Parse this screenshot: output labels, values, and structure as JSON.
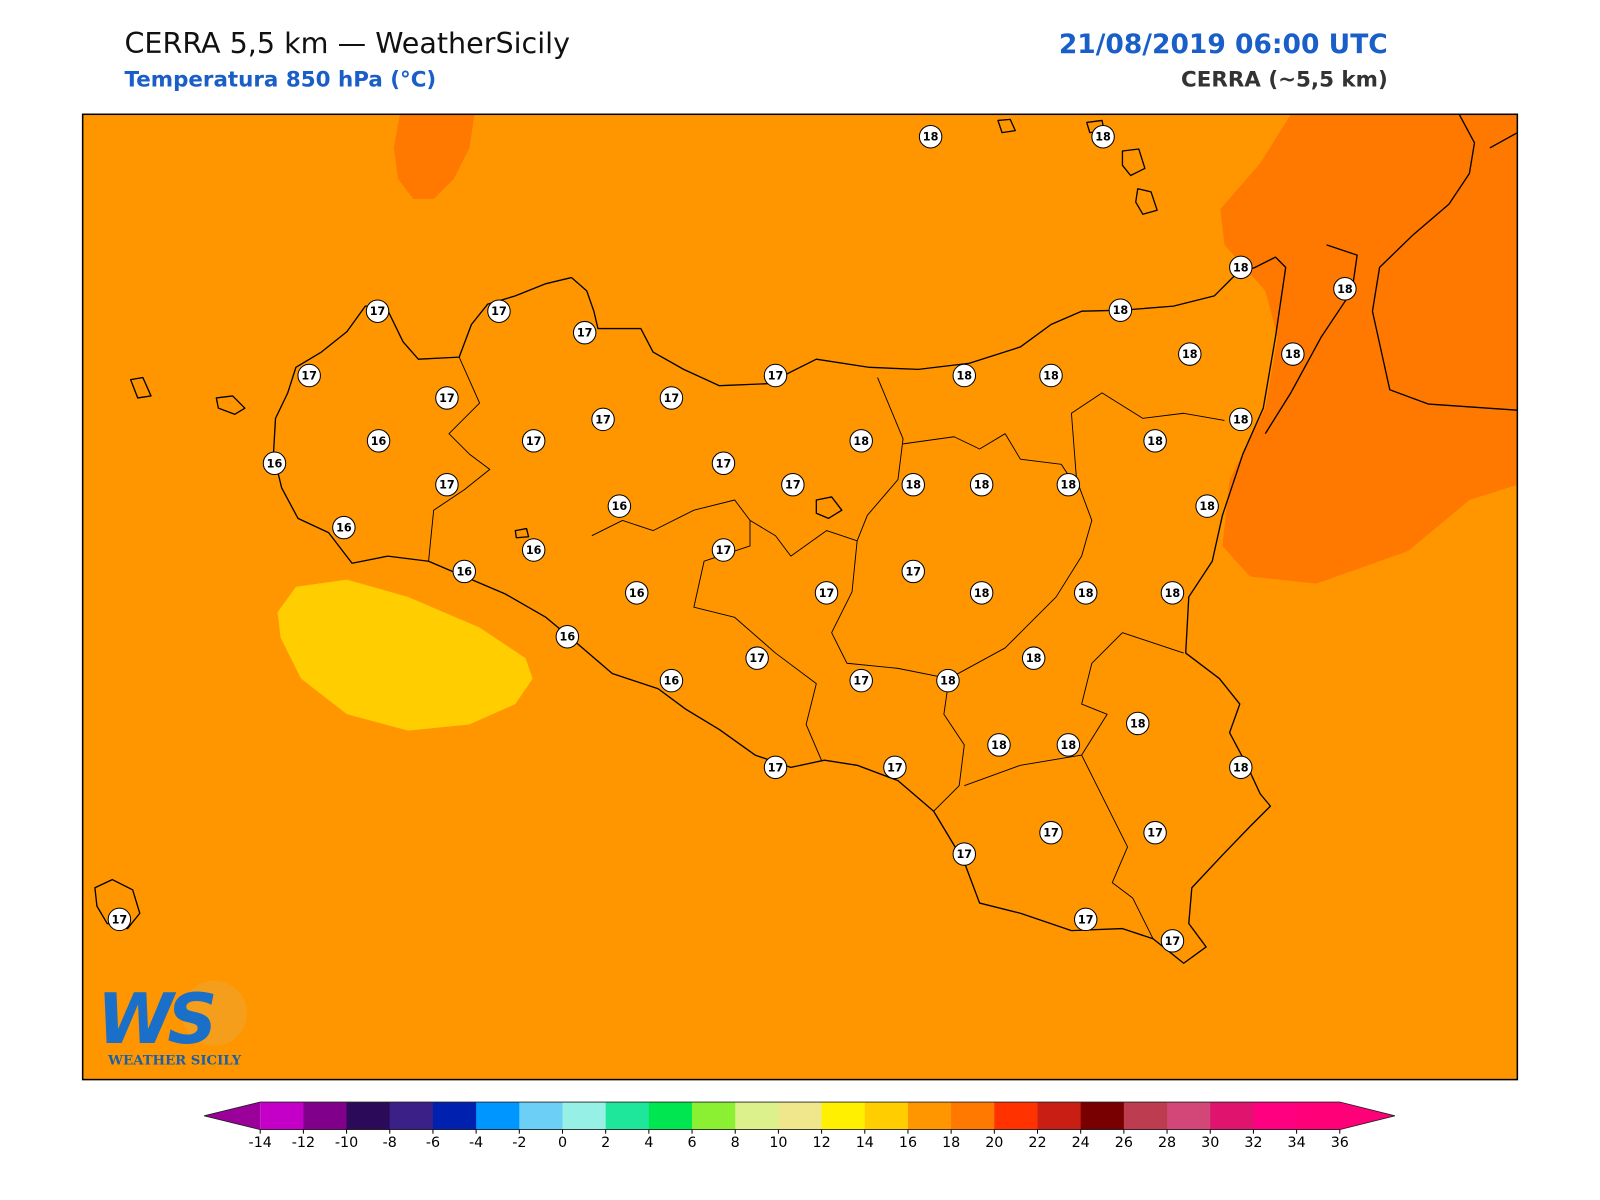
{
  "header": {
    "title": "CERRA 5,5 km — WeatherSicily",
    "subtitle": "Temperatura 850 hPa (°C)",
    "datetime": "21/08/2019 06:00 UTC",
    "model": "CERRA (~5,5 km)"
  },
  "map": {
    "stations": [
      18,
      18,
      18,
      18,
      17,
      17,
      17,
      18,
      17,
      17,
      18,
      18,
      18,
      18,
      17,
      17,
      17,
      18,
      16,
      17,
      18,
      18,
      16,
      17,
      17,
      17,
      18,
      18,
      18,
      16,
      18,
      16,
      16,
      17,
      16,
      17,
      16,
      17,
      18,
      18,
      18,
      16,
      18,
      17,
      16,
      17,
      18,
      18,
      18,
      18,
      17,
      17,
      18,
      17,
      17,
      17,
      17,
      17,
      17
    ],
    "background_color": "#ff9600",
    "colorbar": {
      "ticks": [
        -14,
        -12,
        -10,
        -8,
        -6,
        -4,
        -2,
        0,
        2,
        4,
        6,
        8,
        10,
        12,
        14,
        16,
        18,
        20,
        22,
        24,
        26,
        28,
        30,
        32,
        34,
        36
      ],
      "colors": [
        "#c400c8",
        "#80008c",
        "#2c0a5a",
        "#3b2088",
        "#0020b0",
        "#0096ff",
        "#6ccff6",
        "#96f0e6",
        "#1ee69b",
        "#00e650",
        "#8cf032",
        "#dcf08c",
        "#f0e68c",
        "#fff000",
        "#ffcd00",
        "#ff9600",
        "#ff7800",
        "#ff3200",
        "#c81e14",
        "#780000",
        "#be3c50",
        "#d24678",
        "#e0146e",
        "#ff0080",
        "#ff0078"
      ],
      "under_color": "#9b009b",
      "over_color": "#ff0078"
    }
  },
  "logo": {
    "mark": "WS",
    "name": "WEATHER SICILY"
  }
}
